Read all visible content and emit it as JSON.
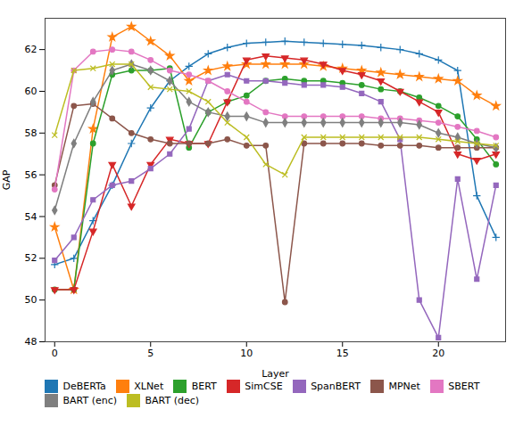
{
  "chart_data": {
    "type": "line",
    "xlabel": "Layer",
    "ylabel": "GAP",
    "xlim": [
      -0.5,
      23.5
    ],
    "ylim": [
      48,
      63.5
    ],
    "xticks": [
      0,
      5,
      10,
      15,
      20
    ],
    "yticks": [
      48,
      50,
      52,
      54,
      56,
      58,
      60,
      62
    ],
    "grid": false,
    "legend": "bottom",
    "x": [
      0,
      1,
      2,
      3,
      4,
      5,
      6,
      7,
      8,
      9,
      10,
      11,
      12,
      13,
      14,
      15,
      16,
      17,
      18,
      19,
      20,
      21,
      22,
      23
    ],
    "series": [
      {
        "name": "DeBERTa",
        "color": "#1f77b4",
        "marker": "plus",
        "values": [
          51.7,
          52.0,
          53.8,
          55.5,
          57.5,
          59.2,
          60.5,
          61.2,
          61.8,
          62.1,
          62.3,
          62.35,
          62.4,
          62.35,
          62.3,
          62.25,
          62.2,
          62.1,
          62.0,
          61.8,
          61.5,
          61.0,
          55.0,
          53.0
        ]
      },
      {
        "name": "XLNet",
        "color": "#ff7f0e",
        "marker": "star",
        "values": [
          53.5,
          50.5,
          58.2,
          62.6,
          63.1,
          62.4,
          61.7,
          60.5,
          61.0,
          61.2,
          61.3,
          61.3,
          61.3,
          61.3,
          61.2,
          61.1,
          61.0,
          60.9,
          60.8,
          60.7,
          60.6,
          60.5,
          59.8,
          59.3
        ]
      },
      {
        "name": "BERT",
        "color": "#2ca02c",
        "marker": "circle",
        "values": [
          50.5,
          50.5,
          57.5,
          60.8,
          61.0,
          61.0,
          61.1,
          57.3,
          59.0,
          59.5,
          59.8,
          60.5,
          60.6,
          60.5,
          60.5,
          60.4,
          60.3,
          60.1,
          60.0,
          59.7,
          59.3,
          58.8,
          57.7,
          56.5
        ]
      },
      {
        "name": "SimCSE",
        "color": "#d62728",
        "marker": "triangle-down",
        "values": [
          50.5,
          50.5,
          53.3,
          56.5,
          54.5,
          56.5,
          57.7,
          57.5,
          57.5,
          59.5,
          61.5,
          61.7,
          61.6,
          61.5,
          61.3,
          61.0,
          60.8,
          60.5,
          60.0,
          59.5,
          59.0,
          57.0,
          56.7,
          57.0
        ]
      },
      {
        "name": "SpanBERT",
        "color": "#9467bd",
        "marker": "square",
        "values": [
          51.9,
          53.0,
          54.8,
          55.5,
          55.7,
          56.3,
          57.0,
          58.2,
          60.5,
          60.8,
          60.5,
          60.5,
          60.4,
          60.3,
          60.3,
          60.2,
          59.9,
          59.5,
          57.7,
          50.0,
          48.2,
          55.8,
          51.0,
          55.5
        ]
      },
      {
        "name": "MPNet",
        "color": "#8c564b",
        "marker": "circle",
        "values": [
          55.5,
          59.3,
          59.4,
          58.7,
          58.0,
          57.7,
          57.5,
          57.5,
          57.5,
          57.7,
          57.4,
          57.4,
          49.9,
          57.5,
          57.5,
          57.5,
          57.5,
          57.4,
          57.4,
          57.4,
          57.3,
          57.3,
          57.3,
          57.3
        ]
      },
      {
        "name": "SBERT",
        "color": "#e377c2",
        "marker": "circle",
        "values": [
          55.3,
          61.0,
          61.9,
          62.0,
          61.9,
          61.5,
          61.0,
          60.8,
          60.5,
          60.0,
          59.5,
          59.0,
          58.8,
          58.8,
          58.8,
          58.8,
          58.8,
          58.7,
          58.7,
          58.6,
          58.5,
          58.3,
          58.1,
          57.8
        ]
      },
      {
        "name": "BART (enc)",
        "color": "#7f7f7f",
        "marker": "diamond",
        "values": [
          54.3,
          57.5,
          59.5,
          61.0,
          61.3,
          61.0,
          60.5,
          59.5,
          59.0,
          58.8,
          58.8,
          58.5,
          58.5,
          58.5,
          58.5,
          58.5,
          58.5,
          58.5,
          58.5,
          58.4,
          58.0,
          57.8,
          57.5,
          57.3
        ]
      },
      {
        "name": "BART (dec)",
        "color": "#bcbd22",
        "marker": "times",
        "values": [
          57.9,
          61.0,
          61.1,
          61.3,
          61.3,
          60.2,
          60.1,
          60.0,
          59.5,
          58.5,
          57.8,
          56.5,
          56.0,
          57.8,
          57.8,
          57.8,
          57.8,
          57.8,
          57.8,
          57.8,
          57.7,
          57.6,
          57.5,
          57.4
        ]
      }
    ]
  }
}
